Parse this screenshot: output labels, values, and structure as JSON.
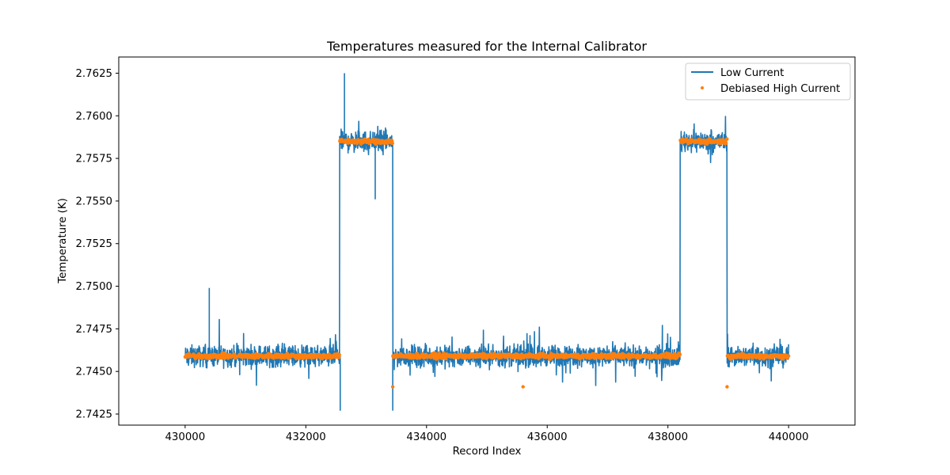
{
  "chart_data": {
    "type": "line",
    "title": "Temperatures measured for the Internal Calibrator",
    "xlabel": "Record Index",
    "ylabel": "Temperature (K)",
    "xlim": [
      428900,
      441100
    ],
    "ylim": [
      2.74185,
      2.76345
    ],
    "x_ticks": [
      430000,
      432000,
      434000,
      436000,
      438000,
      440000
    ],
    "x_tick_labels": [
      "430000",
      "432000",
      "434000",
      "436000",
      "438000",
      "440000"
    ],
    "y_ticks": [
      2.7425,
      2.745,
      2.7475,
      2.75,
      2.7525,
      2.755,
      2.7575,
      2.76,
      2.7625
    ],
    "y_tick_labels": [
      "2.7425",
      "2.7450",
      "2.7475",
      "2.7500",
      "2.7525",
      "2.7550",
      "2.7575",
      "2.7600",
      "2.7625"
    ],
    "legend": {
      "placement": "top-right",
      "entries": [
        "Low Current",
        "Debiased High Current"
      ]
    },
    "x_range": [
      430000,
      440000
    ],
    "segments": [
      {
        "start": 430000,
        "end": 432560,
        "level": 2.7459
      },
      {
        "start": 432560,
        "end": 433440,
        "level": 2.7585
      },
      {
        "start": 433440,
        "end": 438200,
        "level": 2.7459
      },
      {
        "start": 438200,
        "end": 438980,
        "level": 2.7585
      },
      {
        "start": 438980,
        "end": 440000,
        "level": 2.7459
      }
    ],
    "series": [
      {
        "name": "Low Current",
        "style": "line",
        "color": "#1f77b4",
        "noise_amplitude": 0.0012,
        "peak_max": 2.7625,
        "peak_min": 2.7427
      },
      {
        "name": "Debiased High Current",
        "style": "scatter",
        "color": "#ff7f0e",
        "noise_amplitude": 0.0002
      }
    ]
  }
}
